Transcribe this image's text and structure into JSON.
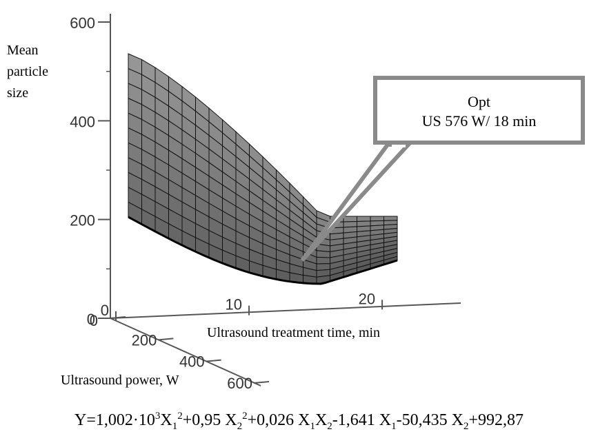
{
  "chart_data": {
    "type": "surface",
    "title": "",
    "zlabel_lines": [
      "Mean",
      "particle",
      "size"
    ],
    "xlabel": "Ultrasound treatment time, min",
    "ylabel": "Ultrasound power, W",
    "z_ticks": [
      "600",
      "400",
      "200",
      "0"
    ],
    "x_ticks": [
      "0",
      "10",
      "20"
    ],
    "y_ticks": [
      "0",
      "200",
      "400",
      "600"
    ],
    "zlim": [
      0,
      600
    ],
    "xlim": [
      0,
      25
    ],
    "ylim": [
      0,
      600
    ],
    "annotation": {
      "lines": [
        "Opt",
        "US 576 W/ 18 min"
      ],
      "point": {
        "power_W": 576,
        "time_min": 18
      }
    },
    "equation": {
      "parts": [
        {
          "t": "Y=1,002·10"
        },
        {
          "sup": "3"
        },
        {
          "t": "X"
        },
        {
          "sub": "1"
        },
        {
          "sup": "2"
        },
        {
          "t": "+0,95 X"
        },
        {
          "sub": "2"
        },
        {
          "sup": "2"
        },
        {
          "t": "+0,026 X"
        },
        {
          "sub": "1"
        },
        {
          "t": "X"
        },
        {
          "sub": "2"
        },
        {
          "t": "-1,641 X"
        },
        {
          "sub": "1"
        },
        {
          "t": "-50,435 X"
        },
        {
          "sub": "2"
        },
        {
          "t": "+992,87"
        }
      ]
    }
  }
}
